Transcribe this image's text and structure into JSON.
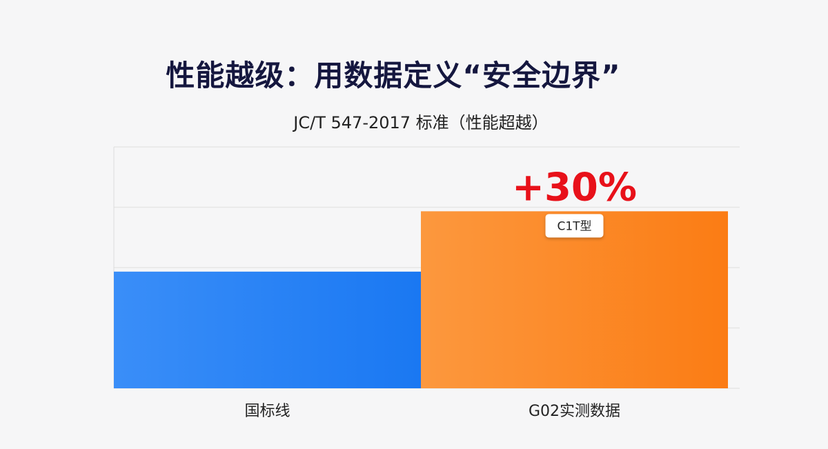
{
  "title": "性能越级：用数据定义“安全边界”",
  "subtitle": "JC/T 547-2017 标准（性能超越）",
  "chart_data": {
    "type": "bar",
    "categories": [
      "国标线",
      "G02实测数据"
    ],
    "values": [
      100,
      130
    ],
    "colors": [
      "#2a80f5",
      "#fb8a2a"
    ],
    "ylim": [
      42,
      162
    ],
    "grid": true,
    "annotations": {
      "increase": "+30%",
      "increase_color": "#e8111a",
      "badge": "C1T型"
    }
  }
}
